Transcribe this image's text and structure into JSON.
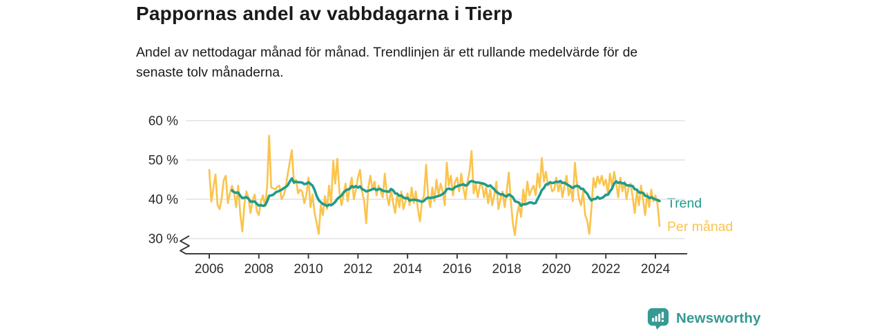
{
  "header": {
    "title": "Pappornas andel av vabbdagarna i Tierp",
    "subtitle_line1": "Andel av nettodagar månad för månad. Trendlinjen är ett rullande medelvärde för de",
    "subtitle_line2": "senaste tolv månaderna."
  },
  "chart_data": {
    "type": "line",
    "title": "Pappornas andel av vabbdagarna i Tierp",
    "unit": "%",
    "x_range": [
      "2006-01",
      "2024-03"
    ],
    "ylim": [
      30,
      60
    ],
    "y_axis_break": true,
    "grid": "horizontal",
    "y_ticks": [
      60,
      50,
      40,
      30
    ],
    "y_tick_labels": [
      "60 %",
      "50 %",
      "40 %",
      "30 %"
    ],
    "x_tick_labels": [
      "2006",
      "2008",
      "2010",
      "2012",
      "2014",
      "2016",
      "2018",
      "2020",
      "2022",
      "2024"
    ],
    "legend_position": "labels-at-line-ends-right",
    "series": [
      {
        "name": "Per månad",
        "color": "#FAC44E",
        "start": "2006-01",
        "frequency": "monthly",
        "values": [
          47.5,
          39.4,
          43.0,
          46.3,
          38.6,
          37.5,
          40.2,
          44.8,
          46.0,
          39.0,
          41.5,
          43.4,
          41.8,
          38.0,
          43.5,
          36.2,
          31.8,
          38.5,
          42.0,
          40.3,
          36.5,
          39.8,
          41.2,
          37.0,
          36.0,
          39.5,
          41.0,
          38.2,
          43.0,
          56.2,
          43.0,
          42.8,
          42.5,
          43.2,
          43.5,
          40.0,
          41.0,
          43.0,
          46.5,
          49.4,
          52.5,
          44.0,
          45.0,
          41.5,
          42.5,
          42.0,
          39.0,
          41.0,
          45.5,
          38.0,
          41.2,
          36.5,
          34.0,
          31.2,
          38.5,
          36.0,
          40.8,
          37.5,
          43.5,
          39.0,
          49.8,
          44.0,
          50.3,
          42.0,
          38.5,
          41.0,
          44.0,
          39.5,
          43.0,
          45.5,
          40.0,
          42.5,
          45.5,
          47.5,
          42.0,
          39.5,
          33.9,
          43.0,
          46.0,
          42.5,
          44.5,
          41.0,
          43.5,
          42.0,
          40.5,
          46.5,
          41.0,
          38.5,
          42.5,
          39.0,
          36.5,
          41.5,
          38.0,
          42.0,
          37.5,
          39.5,
          41.5,
          38.5,
          43.0,
          39.0,
          42.0,
          37.5,
          34.4,
          39.5,
          41.0,
          48.8,
          40.5,
          38.0,
          43.0,
          39.5,
          45.0,
          41.0,
          44.0,
          42.0,
          38.5,
          49.3,
          43.5,
          46.0,
          41.0,
          44.5,
          45.5,
          42.0,
          46.5,
          43.0,
          40.0,
          44.5,
          47.0,
          52.3,
          41.5,
          44.0,
          40.5,
          43.5,
          44.0,
          40.5,
          43.0,
          39.0,
          42.5,
          38.5,
          41.0,
          44.5,
          37.5,
          40.0,
          42.0,
          38.0,
          42.0,
          46.8,
          39.5,
          33.7,
          30.9,
          36.0,
          38.5,
          35.5,
          42.5,
          39.0,
          44.5,
          41.0,
          42.5,
          43.5,
          41.0,
          46.5,
          43.0,
          50.5,
          44.5,
          47.0,
          43.5,
          44.5,
          42.0,
          42.5,
          45.5,
          42.0,
          44.5,
          40.5,
          43.5,
          46.0,
          41.0,
          43.0,
          39.5,
          49.3,
          44.0,
          40.0,
          38.5,
          42.0,
          36.0,
          34.5,
          31.2,
          37.5,
          45.4,
          43.0,
          45.8,
          44.0,
          46.0,
          43.5,
          45.0,
          41.5,
          46.5,
          43.0,
          47.0,
          44.0,
          40.5,
          45.5,
          42.0,
          44.5,
          40.0,
          43.0,
          44.0,
          40.5,
          36.5,
          42.0,
          38.5,
          43.5,
          40.0,
          36.0,
          41.5,
          38.0,
          42.5,
          39.5,
          41.0,
          38.8,
          33.2
        ]
      },
      {
        "name": "Trend",
        "color": "#209B8A",
        "derived": "rolling_mean_12_months_of_per_manad"
      }
    ],
    "style": {
      "grid_color": "#E2E2E2",
      "axis_color": "#3D3D3D",
      "axis_text_color": "#2B2B2B"
    }
  },
  "footer": {
    "brand": "Newsworthy",
    "brand_color": "#349A92"
  }
}
